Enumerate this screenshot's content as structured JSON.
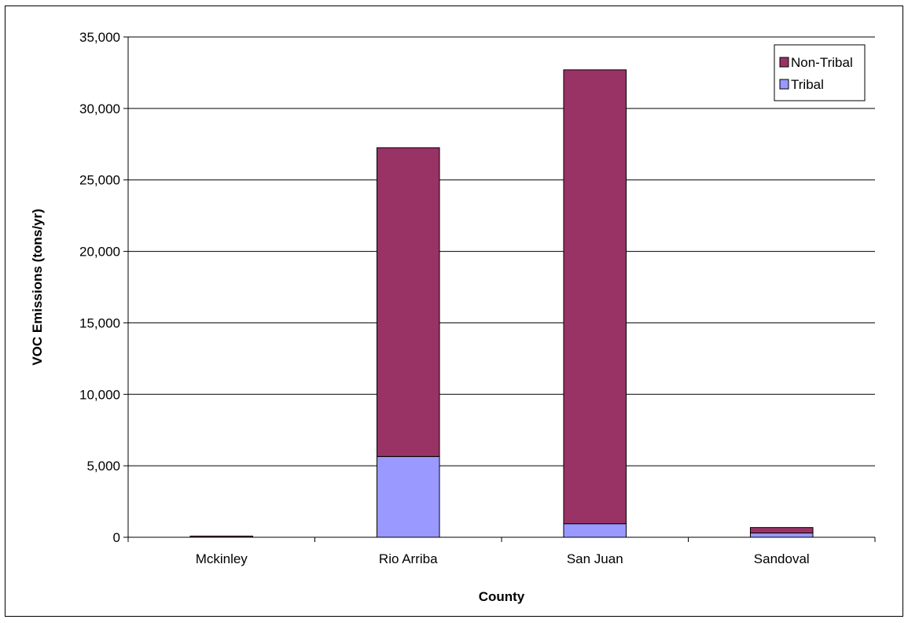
{
  "chart_data": {
    "type": "bar",
    "stacked": true,
    "categories": [
      "Mckinley",
      "Rio Arriba",
      "San Juan",
      "Sandoval"
    ],
    "series": [
      {
        "name": "Tribal",
        "values": [
          0,
          5650,
          950,
          300
        ],
        "color": "#9999ff"
      },
      {
        "name": "Non-Tribal",
        "values": [
          80,
          21600,
          31750,
          380
        ],
        "color": "#993366"
      }
    ],
    "xlabel": "County",
    "ylabel": "VOC Emissions (tons/yr)",
    "ylim": [
      0,
      35000
    ],
    "yticks": [
      "0",
      "5,000",
      "10,000",
      "15,000",
      "20,000",
      "25,000",
      "30,000",
      "35,000"
    ],
    "grid": true,
    "legend_position": "top-right",
    "legend_order": [
      "Non-Tribal",
      "Tribal"
    ]
  }
}
